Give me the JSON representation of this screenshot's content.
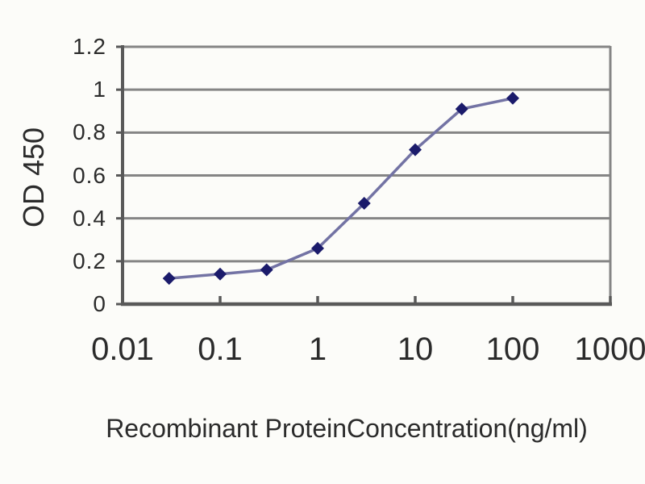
{
  "chart_data": {
    "type": "line",
    "title": "",
    "xlabel": "Recombinant ProteinConcentration(ng/ml)",
    "ylabel": "OD 450",
    "x_scale": "log",
    "x": [
      0.03,
      0.1,
      0.3,
      1,
      3,
      10,
      30,
      100
    ],
    "series": [
      {
        "name": "OD 450",
        "values": [
          0.12,
          0.14,
          0.16,
          0.26,
          0.47,
          0.72,
          0.91,
          0.96
        ]
      }
    ],
    "x_ticks": [
      0.01,
      0.1,
      1,
      10,
      100,
      1000
    ],
    "x_tick_labels": [
      "0.01",
      "0.1",
      "1",
      "10",
      "100",
      "1000"
    ],
    "y_ticks": [
      0,
      0.2,
      0.4,
      0.6,
      0.8,
      1,
      1.2
    ],
    "y_tick_labels": [
      "0",
      "0.2",
      "0.4",
      "0.6",
      "0.8",
      "1",
      "1.2"
    ],
    "xlim": [
      0.01,
      1000
    ],
    "ylim": [
      0,
      1.2
    ],
    "grid": "horizontal",
    "legend": "none",
    "marker": "diamond",
    "colors": {
      "line": "#7373a4",
      "marker": "#1b1b6b",
      "grid": "#858585",
      "axis": "#595959",
      "text": "#2b2b2b",
      "background": "#fcfcf9"
    }
  }
}
